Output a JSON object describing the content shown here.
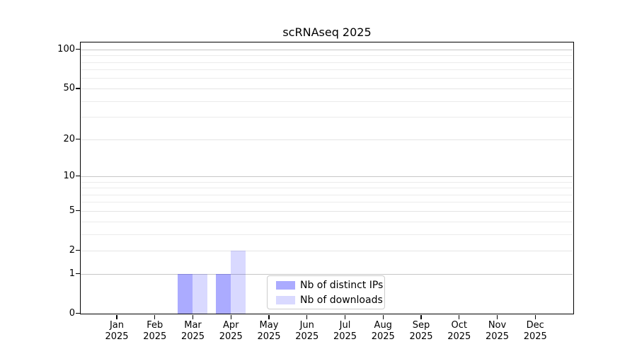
{
  "chart_data": {
    "type": "bar",
    "title": "scRNAseq 2025",
    "x_tick_months": [
      "Jan",
      "Feb",
      "Mar",
      "Apr",
      "May",
      "Jun",
      "Jul",
      "Aug",
      "Sep",
      "Oct",
      "Nov",
      "Dec"
    ],
    "x_tick_year": "2025",
    "series": [
      {
        "name": "Nb of distinct IPs",
        "color": "rgba(0,0,255,0.33)",
        "values": [
          0,
          0,
          1,
          1,
          0,
          0,
          0,
          0,
          0,
          0,
          0,
          0
        ]
      },
      {
        "name": "Nb of downloads",
        "color": "rgba(0,0,255,0.15)",
        "values": [
          0,
          0,
          1,
          2,
          0,
          0,
          0,
          0,
          0,
          0,
          0,
          0
        ]
      }
    ],
    "y_axis": {
      "scale": "log1p",
      "major_ticks": [
        0,
        1,
        2,
        5,
        10,
        20,
        50,
        100
      ],
      "minor_gridlines": [
        3,
        4,
        6,
        7,
        8,
        9,
        30,
        40,
        60,
        70,
        80,
        90
      ],
      "emphasized_gridlines": [
        1,
        10,
        100
      ],
      "top_value": 116
    },
    "grid": true,
    "legend": {
      "position": "inside-bottom, right of center"
    },
    "colors": {
      "grid_minor": "#ebebeb",
      "grid_major": "#e4e4e4",
      "grid_emphasized": "#c6c6c6",
      "axis": "#000000",
      "legend_border": "#cccccc",
      "background": "#ffffff"
    }
  }
}
